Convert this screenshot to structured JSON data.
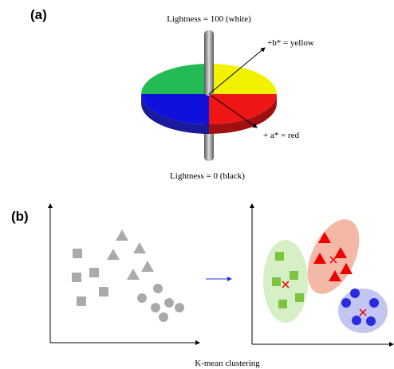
{
  "panel_a": {
    "label": "(a)",
    "top_label": "Lightness = 100 (white)",
    "b_label": "+b* = yellow",
    "a_label": "+ a* = red",
    "bottom_label": "Lightness = 0 (black)"
  },
  "panel_b": {
    "label": "(b)",
    "caption": "K-mean clustering"
  }
}
